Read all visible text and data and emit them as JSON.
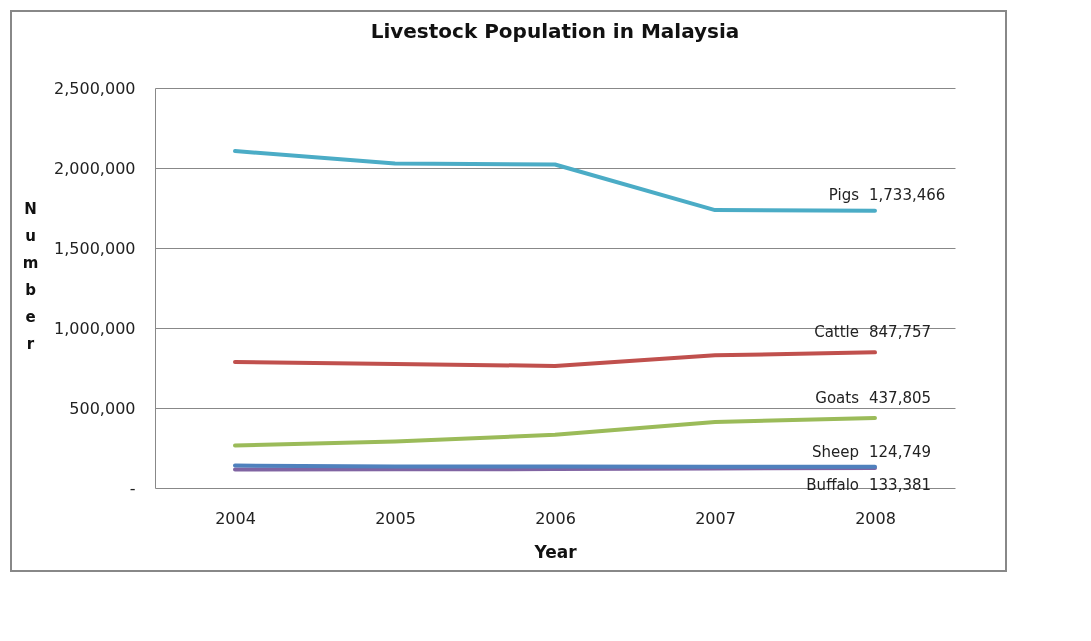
{
  "chart_data": {
    "type": "line",
    "title": "Livestock Population in Malaysia",
    "xlabel": "Year",
    "ylabel": "Number",
    "categories": [
      "2004",
      "2005",
      "2006",
      "2007",
      "2008"
    ],
    "series": [
      {
        "name": "Pigs",
        "color": "#4bacc6",
        "values": [
          2106000,
          2028000,
          2022000,
          1737000,
          1733466
        ],
        "value_labels": [
          null,
          null,
          null,
          null,
          "1,733,466"
        ]
      },
      {
        "name": "Cattle",
        "color": "#c0504d",
        "values": [
          787000,
          775000,
          763000,
          829000,
          847757
        ],
        "value_labels": [
          null,
          null,
          null,
          null,
          "847,757"
        ]
      },
      {
        "name": "Goats",
        "color": "#9bbb59",
        "values": [
          266000,
          290000,
          333000,
          412000,
          437805
        ],
        "value_labels": [
          null,
          null,
          null,
          null,
          "437,805"
        ]
      },
      {
        "name": "Sheep",
        "color": "#8064a2",
        "values": [
          116000,
          117000,
          118000,
          122000,
          124749
        ],
        "value_labels": [
          null,
          null,
          null,
          null,
          "124,749"
        ]
      },
      {
        "name": "Buffalo",
        "color": "#4f81bd",
        "values": [
          140000,
          135000,
          134000,
          133000,
          133381
        ],
        "value_labels": [
          null,
          null,
          null,
          null,
          "133,381"
        ]
      }
    ],
    "ylim": [
      0,
      2500000
    ],
    "yticks": [
      {
        "value": 0,
        "label": "-"
      },
      {
        "value": 500000,
        "label": "500,000"
      },
      {
        "value": 1000000,
        "label": "1,000,000"
      },
      {
        "value": 1500000,
        "label": "1,500,000"
      },
      {
        "value": 2000000,
        "label": "2,000,000"
      },
      {
        "value": 2500000,
        "label": "2,500,000"
      }
    ],
    "grid": "y",
    "legend": false,
    "marker": "none",
    "line_style": "solid"
  }
}
